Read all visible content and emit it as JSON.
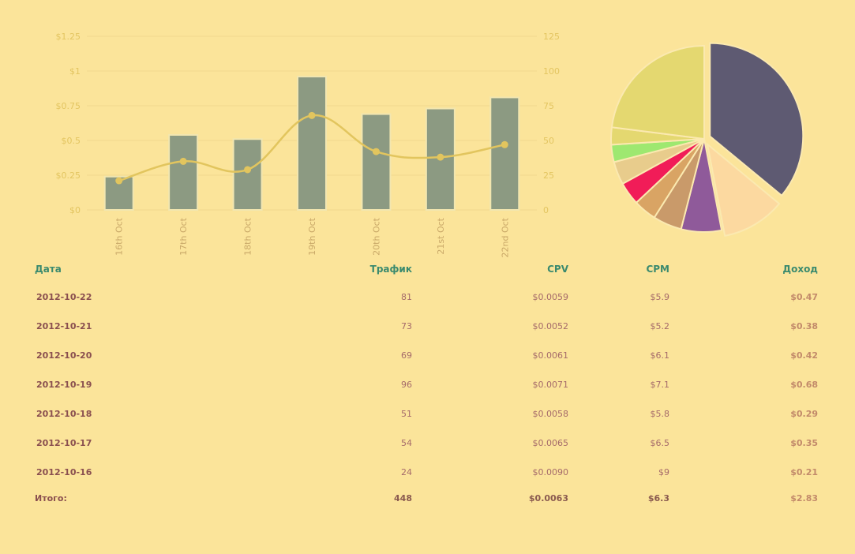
{
  "chart_data": [
    {
      "type": "bar+line",
      "categories": [
        "16th Oct",
        "17th Oct",
        "18th Oct",
        "19th Oct",
        "20th Oct",
        "21st Oct",
        "22nd Oct"
      ],
      "series": [
        {
          "axis": "right",
          "kind": "bar",
          "values": [
            24,
            54,
            51,
            96,
            69,
            73,
            81
          ]
        },
        {
          "axis": "left",
          "kind": "line",
          "values": [
            0.21,
            0.35,
            0.29,
            0.68,
            0.42,
            0.38,
            0.47
          ]
        }
      ],
      "y_left": {
        "ticks": [
          "$0",
          "$0.25",
          "$0.5",
          "$0.75",
          "$1",
          "$1.25"
        ],
        "range": [
          0,
          1.25
        ]
      },
      "y_right": {
        "ticks": [
          "0",
          "25",
          "50",
          "75",
          "100",
          "125"
        ],
        "range": [
          0,
          125
        ]
      },
      "grid": true,
      "colors": {
        "bar": "#8c9a82",
        "bar_edge": "#f2e6b0",
        "line": "#e2c55e",
        "grid": "#f0d98e"
      }
    },
    {
      "type": "pie",
      "values": [
        36,
        11,
        7,
        5,
        4,
        4,
        4,
        3,
        3,
        23
      ],
      "colors": [
        "#5e5a72",
        "#fcd9a0",
        "#8f5a9a",
        "#c99a6a",
        "#d9a464",
        "#f11c58",
        "#e8cc8c",
        "#9ee870",
        "#e4d870",
        "#e4d870"
      ],
      "exploded": [
        0,
        1
      ]
    }
  ],
  "table": {
    "headers": {
      "date": "Дата",
      "traffic": "Трафик",
      "cpv": "CPV",
      "cpm": "CPM",
      "income": "Доход"
    },
    "rows": [
      {
        "date": "2012-10-22",
        "traffic": "81",
        "cpv": "$0.0059",
        "cpm": "$5.9",
        "income": "$0.47"
      },
      {
        "date": "2012-10-21",
        "traffic": "73",
        "cpv": "$0.0052",
        "cpm": "$5.2",
        "income": "$0.38"
      },
      {
        "date": "2012-10-20",
        "traffic": "69",
        "cpv": "$0.0061",
        "cpm": "$6.1",
        "income": "$0.42"
      },
      {
        "date": "2012-10-19",
        "traffic": "96",
        "cpv": "$0.0071",
        "cpm": "$7.1",
        "income": "$0.68"
      },
      {
        "date": "2012-10-18",
        "traffic": "51",
        "cpv": "$0.0058",
        "cpm": "$5.8",
        "income": "$0.29"
      },
      {
        "date": "2012-10-17",
        "traffic": "54",
        "cpv": "$0.0065",
        "cpm": "$6.5",
        "income": "$0.35"
      },
      {
        "date": "2012-10-16",
        "traffic": "24",
        "cpv": "$0.0090",
        "cpm": "$9",
        "income": "$0.21"
      }
    ],
    "total": {
      "label": "Итого:",
      "traffic": "448",
      "cpv": "$0.0063",
      "cpm": "$6.3",
      "income": "$2.83"
    }
  }
}
